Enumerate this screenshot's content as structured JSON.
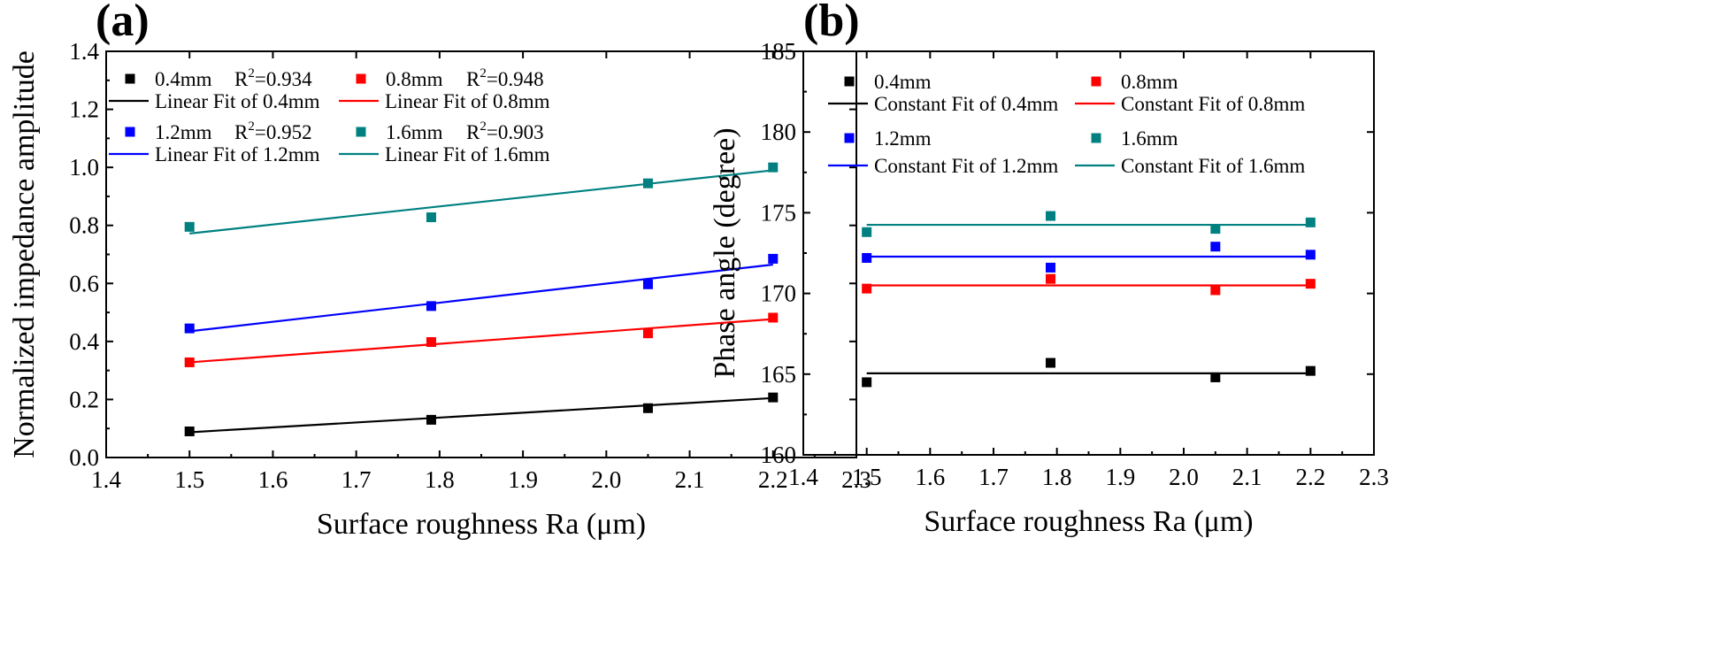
{
  "chart_data": [
    {
      "type": "scatter",
      "panel_label": "(a)",
      "xlabel": "Surface roughness Ra (μm)",
      "ylabel": "Normalized impedance amplitude",
      "xlim": [
        1.4,
        2.3
      ],
      "ylim": [
        0.0,
        1.4
      ],
      "xticks": [
        "1.4",
        "1.5",
        "1.6",
        "1.7",
        "1.8",
        "1.9",
        "2.0",
        "2.1",
        "2.2",
        "2.3"
      ],
      "yticks": [
        "0.0",
        "0.2",
        "0.4",
        "0.6",
        "0.8",
        "1.0",
        "1.2",
        "1.4"
      ],
      "grid": false,
      "legend_position": "top-left",
      "x": [
        1.5,
        1.79,
        2.05,
        2.2
      ],
      "series": [
        {
          "name": "0.4mm",
          "r2_prefix": "R",
          "r2_sup": "2",
          "r2_value": "=0.934",
          "color": "#000000",
          "values": [
            0.09,
            0.13,
            0.17,
            0.207
          ],
          "fit_name": "Linear Fit of 0.4mm",
          "fit": [
            0.087,
            0.205
          ]
        },
        {
          "name": "0.8mm",
          "r2_prefix": "R",
          "r2_sup": "2",
          "r2_value": "=0.948",
          "color": "#ff0000",
          "values": [
            0.328,
            0.398,
            0.428,
            0.482
          ],
          "fit_name": "Linear Fit of 0.8mm",
          "fit": [
            0.328,
            0.477
          ]
        },
        {
          "name": "1.2mm",
          "r2_prefix": "R",
          "r2_sup": "2",
          "r2_value": "=0.952",
          "color": "#0000ff",
          "values": [
            0.445,
            0.522,
            0.597,
            0.685
          ],
          "fit_name": "Linear Fit of 1.2mm",
          "fit": [
            0.435,
            0.665
          ]
        },
        {
          "name": "1.6mm",
          "r2_prefix": "R",
          "r2_sup": "2",
          "r2_value": "=0.903",
          "color": "#008080",
          "values": [
            0.795,
            0.828,
            0.945,
            1.0
          ],
          "fit_name": "Linear Fit of 1.6mm",
          "fit": [
            0.772,
            0.99
          ]
        }
      ]
    },
    {
      "type": "scatter",
      "panel_label": "(b)",
      "xlabel": "Surface roughness Ra (μm)",
      "ylabel": "Phase angle (degree)",
      "xlim": [
        1.4,
        2.3
      ],
      "ylim": [
        160,
        185
      ],
      "xticks": [
        "1.4",
        "1.5",
        "1.6",
        "1.7",
        "1.8",
        "1.9",
        "2.0",
        "2.1",
        "2.2",
        "2.3"
      ],
      "yticks": [
        "160",
        "165",
        "170",
        "175",
        "180",
        "185"
      ],
      "grid": false,
      "legend_position": "top-left",
      "x": [
        1.5,
        1.79,
        2.05,
        2.2
      ],
      "series": [
        {
          "name": "0.4mm",
          "color": "#000000",
          "values": [
            164.5,
            165.7,
            164.8,
            165.2
          ],
          "fit_name": "Constant Fit of 0.4mm",
          "fit": [
            165.05,
            165.05
          ]
        },
        {
          "name": "0.8mm",
          "color": "#ff0000",
          "values": [
            170.3,
            170.9,
            170.2,
            170.6
          ],
          "fit_name": "Constant Fit of 0.8mm",
          "fit": [
            170.5,
            170.5
          ]
        },
        {
          "name": "1.2mm",
          "color": "#0000ff",
          "values": [
            172.2,
            171.6,
            172.9,
            172.4
          ],
          "fit_name": "Constant Fit of 1.2mm",
          "fit": [
            172.28,
            172.28
          ]
        },
        {
          "name": "1.6mm",
          "color": "#008080",
          "values": [
            173.8,
            174.8,
            174.0,
            174.4
          ],
          "fit_name": "Constant Fit of 1.6mm",
          "fit": [
            174.25,
            174.25
          ]
        }
      ]
    }
  ]
}
